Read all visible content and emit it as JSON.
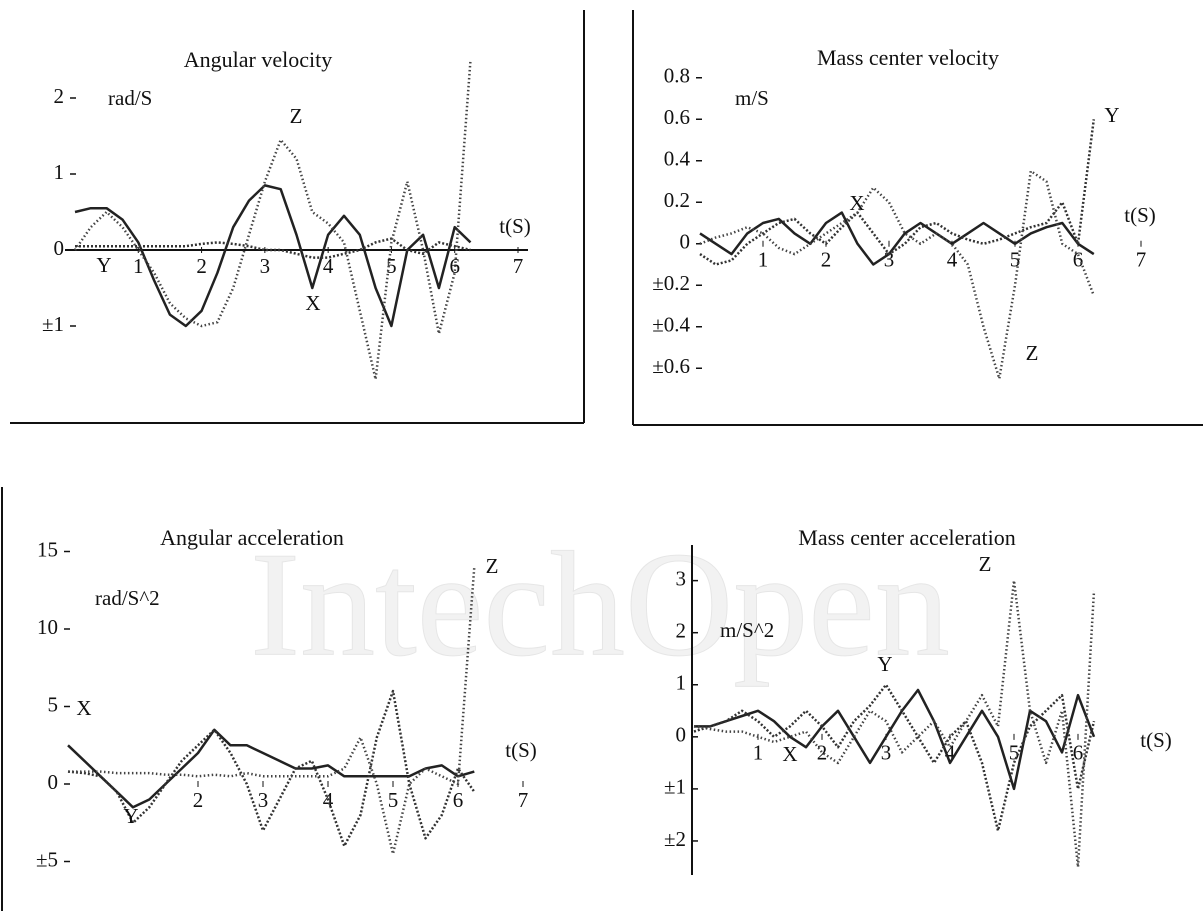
{
  "watermark": "IntechOpen",
  "chart_data": [
    {
      "type": "line",
      "title": "Angular velocity",
      "y_label": "rad/S",
      "x_label": "t(S)",
      "x": [
        0,
        0.25,
        0.5,
        0.75,
        1,
        1.25,
        1.5,
        1.75,
        2,
        2.25,
        2.5,
        2.75,
        3,
        3.25,
        3.5,
        3.75,
        4,
        4.25,
        4.5,
        4.75,
        5,
        5.25,
        5.5,
        5.75,
        6,
        6.25
      ],
      "series": [
        {
          "name": "X",
          "color": "#222222",
          "values": [
            0.5,
            0.55,
            0.55,
            0.4,
            0.1,
            -0.4,
            -0.85,
            -1.0,
            -0.8,
            -0.3,
            0.3,
            0.65,
            0.85,
            0.8,
            0.2,
            -0.5,
            0.2,
            0.45,
            0.2,
            -0.5,
            -1.0,
            0.0,
            0.2,
            -0.5,
            0.3,
            0.1
          ]
        },
        {
          "name": "Y",
          "color": "#333333",
          "values": [
            0.05,
            0.05,
            0.05,
            0.05,
            0.05,
            0.05,
            0.05,
            0.05,
            0.08,
            0.1,
            0.08,
            0.05,
            0.0,
            0.0,
            -0.05,
            -0.1,
            -0.1,
            -0.05,
            0.0,
            0.1,
            0.15,
            0.0,
            -0.05,
            0.1,
            0.05,
            0.0
          ]
        },
        {
          "name": "Z",
          "color": "#444444",
          "values": [
            0.0,
            0.3,
            0.5,
            0.3,
            0.0,
            -0.3,
            -0.7,
            -0.9,
            -1.0,
            -0.95,
            -0.5,
            0.2,
            0.9,
            1.45,
            1.2,
            0.5,
            0.35,
            0.1,
            -0.8,
            -1.7,
            0.1,
            0.9,
            0.0,
            -1.1,
            -0.3,
            2.5
          ]
        }
      ],
      "xlim": [
        0,
        7
      ],
      "ylim": [
        -2,
        2.5
      ],
      "xticks": [
        1,
        2,
        3,
        4,
        5,
        6,
        7
      ],
      "yticks": [
        {
          "value": -1,
          "label": "±1"
        },
        0,
        1,
        2
      ]
    },
    {
      "type": "line",
      "title": "Mass center velocity",
      "y_label": "m/S",
      "x_label": "t(S)",
      "x": [
        0,
        0.25,
        0.5,
        0.75,
        1,
        1.25,
        1.5,
        1.75,
        2,
        2.25,
        2.5,
        2.75,
        3,
        3.25,
        3.5,
        3.75,
        4,
        4.25,
        4.5,
        4.75,
        5,
        5.25,
        5.5,
        5.75,
        6,
        6.25
      ],
      "series": [
        {
          "name": "X",
          "color": "#222222",
          "values": [
            0.05,
            0.0,
            -0.05,
            0.05,
            0.1,
            0.12,
            0.05,
            0.0,
            0.1,
            0.15,
            0.0,
            -0.1,
            -0.05,
            0.05,
            0.1,
            0.05,
            0.0,
            0.05,
            0.1,
            0.05,
            0.0,
            0.05,
            0.08,
            0.1,
            0.0,
            -0.05
          ]
        },
        {
          "name": "Y",
          "color": "#333333",
          "values": [
            -0.05,
            -0.1,
            -0.08,
            0.0,
            0.05,
            0.1,
            0.12,
            0.05,
            0.0,
            0.08,
            0.15,
            0.05,
            -0.05,
            0.0,
            0.08,
            0.1,
            0.05,
            0.02,
            0.0,
            0.02,
            0.05,
            0.08,
            0.1,
            0.2,
            0.0,
            0.6
          ]
        },
        {
          "name": "Z",
          "color": "#444444",
          "values": [
            0.0,
            0.03,
            0.05,
            0.08,
            0.05,
            -0.02,
            -0.05,
            0.0,
            0.05,
            0.1,
            0.15,
            0.27,
            0.2,
            0.05,
            0.0,
            0.05,
            0.0,
            -0.1,
            -0.4,
            -0.65,
            -0.2,
            0.35,
            0.3,
            0.0,
            -0.05,
            -0.25
          ]
        }
      ],
      "xlim": [
        0,
        7
      ],
      "ylim": [
        -0.7,
        0.9
      ],
      "xticks": [
        1,
        2,
        3,
        4,
        5,
        6,
        7
      ],
      "yticks": [
        {
          "value": -0.6,
          "label": "±0.6"
        },
        {
          "value": -0.4,
          "label": "±0.4"
        },
        {
          "value": -0.2,
          "label": "±0.2"
        },
        0,
        0.2,
        0.4,
        0.6,
        0.8
      ]
    },
    {
      "type": "line",
      "title": "Angular acceleration",
      "y_label": "rad/S^2",
      "x_label": "t(S)",
      "x": [
        0,
        0.25,
        0.5,
        0.75,
        1,
        1.25,
        1.5,
        1.75,
        2,
        2.25,
        2.5,
        2.75,
        3,
        3.25,
        3.5,
        3.75,
        4,
        4.25,
        4.5,
        4.75,
        5,
        5.25,
        5.5,
        5.75,
        6,
        6.25
      ],
      "series": [
        {
          "name": "X",
          "color": "#222222",
          "values": [
            2.5,
            1.5,
            0.5,
            -0.5,
            -1.5,
            -1.0,
            0.0,
            1.0,
            2.0,
            3.5,
            2.5,
            2.5,
            2.0,
            1.5,
            1.0,
            1.0,
            1.2,
            0.5,
            0.5,
            0.5,
            0.5,
            0.5,
            1.0,
            1.2,
            0.5,
            0.8
          ]
        },
        {
          "name": "Y",
          "color": "#333333",
          "values": [
            0.8,
            0.7,
            0.5,
            -0.5,
            -2.5,
            -1.5,
            0.0,
            1.5,
            2.5,
            3.5,
            2.0,
            0.0,
            -3.0,
            -1.0,
            1.0,
            1.5,
            -1.0,
            -4.0,
            -2.0,
            3.0,
            6.0,
            0.0,
            -3.5,
            -2.0,
            1.0,
            -0.5
          ]
        },
        {
          "name": "Z",
          "color": "#444444",
          "values": [
            0.8,
            0.8,
            0.8,
            0.7,
            0.7,
            0.7,
            0.6,
            0.6,
            0.5,
            0.6,
            0.5,
            0.7,
            0.5,
            0.5,
            0.5,
            0.5,
            0.5,
            1.0,
            3.0,
            0.0,
            -4.5,
            0.0,
            1.0,
            0.5,
            0.0,
            14.0
          ]
        }
      ],
      "xlim": [
        0,
        7
      ],
      "ylim": [
        -6,
        16
      ],
      "xticks": [
        2,
        3,
        4,
        5,
        6,
        7
      ],
      "yticks": [
        {
          "value": -5,
          "label": "±5"
        },
        0,
        5,
        10,
        15
      ]
    },
    {
      "type": "line",
      "title": "Mass center acceleration",
      "y_label": "m/S^2",
      "x_label": "t(S)",
      "x": [
        0,
        0.25,
        0.5,
        0.75,
        1,
        1.25,
        1.5,
        1.75,
        2,
        2.25,
        2.5,
        2.75,
        3,
        3.25,
        3.5,
        3.75,
        4,
        4.25,
        4.5,
        4.75,
        5,
        5.25,
        5.5,
        5.75,
        6,
        6.25
      ],
      "series": [
        {
          "name": "X",
          "color": "#222222",
          "values": [
            0.2,
            0.2,
            0.3,
            0.4,
            0.5,
            0.3,
            0.0,
            -0.2,
            0.2,
            0.5,
            0.0,
            -0.5,
            0.0,
            0.5,
            0.9,
            0.3,
            -0.5,
            0.0,
            0.5,
            0.0,
            -1.0,
            0.5,
            0.3,
            -0.3,
            0.8,
            0.0
          ]
        },
        {
          "name": "Y",
          "color": "#333333",
          "values": [
            0.1,
            0.2,
            0.3,
            0.5,
            0.3,
            0.0,
            0.2,
            0.5,
            0.2,
            -0.2,
            0.3,
            0.6,
            1.0,
            0.5,
            0.0,
            -0.5,
            0.0,
            0.3,
            -0.5,
            -1.8,
            -0.5,
            0.2,
            0.5,
            0.8,
            -1.0,
            0.3
          ]
        },
        {
          "name": "Z",
          "color": "#444444",
          "values": [
            0.2,
            0.15,
            0.1,
            0.1,
            0.0,
            -0.1,
            0.0,
            0.1,
            -0.3,
            -0.5,
            0.0,
            0.5,
            0.3,
            -0.3,
            0.0,
            0.3,
            -0.2,
            0.3,
            0.8,
            0.2,
            3.0,
            0.5,
            -0.5,
            0.5,
            -2.5,
            2.8
          ]
        }
      ],
      "xlim": [
        0,
        7
      ],
      "ylim": [
        -2.5,
        3.3
      ],
      "xticks": [
        1,
        2,
        3,
        4,
        5,
        6
      ],
      "yticks": [
        {
          "value": -2,
          "label": "±2"
        },
        {
          "value": -1,
          "label": "±1"
        },
        0,
        1,
        2,
        3
      ]
    }
  ]
}
